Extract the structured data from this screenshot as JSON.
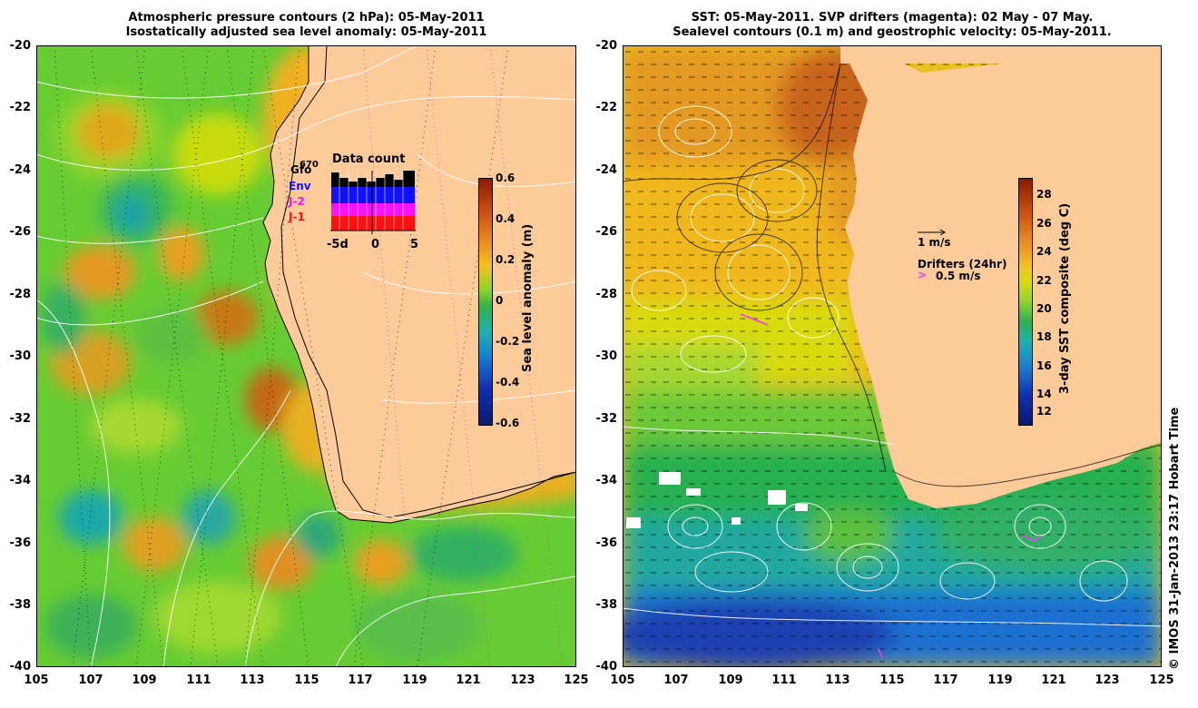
{
  "left": {
    "title_line1": "Atmospheric pressure contours (2 hPa): 05-May-2011",
    "title_line2": "Isostatically adjusted sea level anomaly: 05-May-2011",
    "colorbar_label": "Sea level anomaly (m)",
    "colorbar_ticks": [
      "0.6",
      "0.4",
      "0.2",
      "0",
      "-0.2",
      "-0.4",
      "-0.6"
    ],
    "inset": {
      "title": "Data count",
      "max_label": "670",
      "series": [
        "Gfo",
        "Env",
        "J-2",
        "J-1"
      ],
      "series_colors": [
        "#000000",
        "#1010ff",
        "#ff10ff",
        "#ff1010"
      ],
      "x_ticks": [
        "-5d",
        "0",
        "5"
      ]
    }
  },
  "right": {
    "title_line1": "SST: 05-May-2011. SVP drifters (magenta): 02 May - 07 May.",
    "title_line2": "Sealevel contours (0.1 m) and geostrophic velocity: 05-May-2011.",
    "colorbar_label": "3-day SST composite (deg C)",
    "colorbar_ticks": [
      "28",
      "26",
      "24",
      "22",
      "20",
      "18",
      "16",
      "14",
      "12"
    ],
    "velocity_legend": "1 m/s",
    "drifter_legend_title": "Drifters (24hr)",
    "drifter_legend_value": "0.5 m/s"
  },
  "axes": {
    "y_ticks": [
      "-20",
      "-22",
      "-24",
      "-26",
      "-28",
      "-30",
      "-32",
      "-34",
      "-36",
      "-38",
      "-40"
    ],
    "x_ticks": [
      "105",
      "107",
      "109",
      "111",
      "113",
      "115",
      "117",
      "119",
      "121",
      "123",
      "125"
    ]
  },
  "credit": "© IMOS 31-Jan-2013 23:17 Hobart Time",
  "colors": {
    "land": "#fdcb9a",
    "drifter": "#ff33ff"
  }
}
